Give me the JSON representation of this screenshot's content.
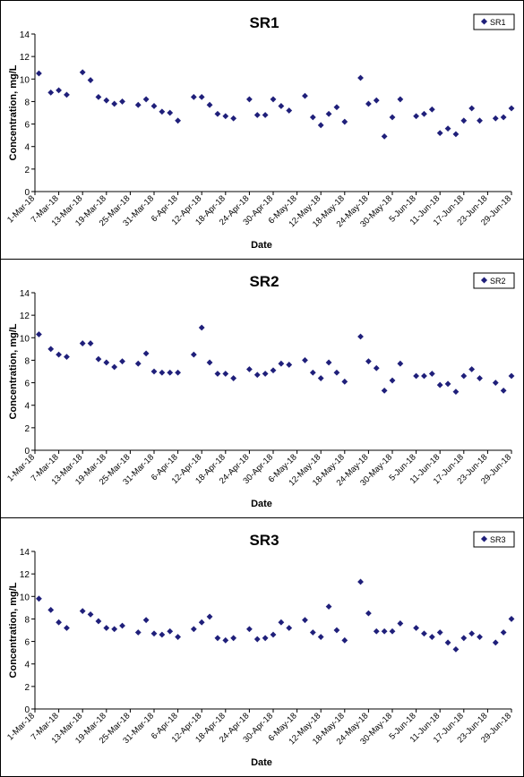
{
  "chart_data": [
    {
      "type": "scatter",
      "title": "SR1",
      "xlabel": "Date",
      "ylabel": "Concentration, mg/L",
      "ylim": [
        0,
        14
      ],
      "yticks": [
        0,
        2,
        4,
        6,
        8,
        10,
        12,
        14
      ],
      "xlim": [
        "2018-03-01",
        "2018-06-29"
      ],
      "xtick_labels": [
        "1-Mar-18",
        "7-Mar-18",
        "13-Mar-18",
        "19-Mar-18",
        "25-Mar-18",
        "31-Mar-18",
        "6-Apr-18",
        "12-Apr-18",
        "18-Apr-18",
        "24-Apr-18",
        "30-Apr-18",
        "6-May-18",
        "12-May-18",
        "18-May-18",
        "24-May-18",
        "30-May-18",
        "5-Jun-18",
        "11-Jun-18",
        "17-Jun-18",
        "23-Jun-18",
        "29-Jun-18"
      ],
      "legend": "top-right",
      "marker_color": "#1f1f7a",
      "series": [
        {
          "name": "SR1",
          "x": [
            "2018-03-02",
            "2018-03-05",
            "2018-03-07",
            "2018-03-09",
            "2018-03-13",
            "2018-03-15",
            "2018-03-17",
            "2018-03-19",
            "2018-03-21",
            "2018-03-23",
            "2018-03-27",
            "2018-03-29",
            "2018-03-31",
            "2018-04-02",
            "2018-04-04",
            "2018-04-06",
            "2018-04-10",
            "2018-04-12",
            "2018-04-14",
            "2018-04-16",
            "2018-04-18",
            "2018-04-20",
            "2018-04-24",
            "2018-04-26",
            "2018-04-28",
            "2018-04-30",
            "2018-05-02",
            "2018-05-04",
            "2018-05-08",
            "2018-05-10",
            "2018-05-12",
            "2018-05-14",
            "2018-05-16",
            "2018-05-18",
            "2018-05-22",
            "2018-05-24",
            "2018-05-26",
            "2018-05-28",
            "2018-05-30",
            "2018-06-01",
            "2018-06-05",
            "2018-06-07",
            "2018-06-09",
            "2018-06-11",
            "2018-06-13",
            "2018-06-15",
            "2018-06-17",
            "2018-06-19",
            "2018-06-21",
            "2018-06-25",
            "2018-06-27",
            "2018-06-29"
          ],
          "y": [
            10.5,
            8.8,
            9.0,
            8.6,
            10.6,
            9.9,
            8.4,
            8.1,
            7.8,
            8.0,
            7.7,
            8.2,
            7.6,
            7.1,
            7.0,
            6.3,
            8.4,
            8.4,
            7.7,
            6.9,
            6.7,
            6.5,
            8.2,
            6.8,
            6.8,
            8.2,
            7.6,
            7.2,
            8.5,
            6.6,
            5.9,
            6.9,
            7.5,
            6.2,
            10.1,
            7.8,
            8.1,
            4.9,
            6.6,
            8.2,
            6.7,
            6.9,
            7.3,
            5.2,
            5.6,
            5.1,
            6.3,
            7.4,
            6.3,
            6.5,
            6.6,
            7.4
          ]
        }
      ]
    },
    {
      "type": "scatter",
      "title": "SR2",
      "xlabel": "Date",
      "ylabel": "Concentration, mg/L",
      "ylim": [
        0,
        14
      ],
      "yticks": [
        0,
        2,
        4,
        6,
        8,
        10,
        12,
        14
      ],
      "xlim": [
        "2018-03-01",
        "2018-06-29"
      ],
      "xtick_labels": [
        "1-Mar-18",
        "7-Mar-18",
        "13-Mar-18",
        "19-Mar-18",
        "25-Mar-18",
        "31-Mar-18",
        "6-Apr-18",
        "12-Apr-18",
        "18-Apr-18",
        "24-Apr-18",
        "30-Apr-18",
        "6-May-18",
        "12-May-18",
        "18-May-18",
        "24-May-18",
        "30-May-18",
        "5-Jun-18",
        "11-Jun-18",
        "17-Jun-18",
        "23-Jun-18",
        "29-Jun-18"
      ],
      "legend": "top-right",
      "marker_color": "#1f1f7a",
      "series": [
        {
          "name": "SR2",
          "x": [
            "2018-03-02",
            "2018-03-05",
            "2018-03-07",
            "2018-03-09",
            "2018-03-13",
            "2018-03-15",
            "2018-03-17",
            "2018-03-19",
            "2018-03-21",
            "2018-03-23",
            "2018-03-27",
            "2018-03-29",
            "2018-03-31",
            "2018-04-02",
            "2018-04-04",
            "2018-04-06",
            "2018-04-10",
            "2018-04-12",
            "2018-04-14",
            "2018-04-16",
            "2018-04-18",
            "2018-04-20",
            "2018-04-24",
            "2018-04-26",
            "2018-04-28",
            "2018-04-30",
            "2018-05-02",
            "2018-05-04",
            "2018-05-08",
            "2018-05-10",
            "2018-05-12",
            "2018-05-14",
            "2018-05-16",
            "2018-05-18",
            "2018-05-22",
            "2018-05-24",
            "2018-05-26",
            "2018-05-28",
            "2018-05-30",
            "2018-06-01",
            "2018-06-05",
            "2018-06-07",
            "2018-06-09",
            "2018-06-11",
            "2018-06-13",
            "2018-06-15",
            "2018-06-17",
            "2018-06-19",
            "2018-06-21",
            "2018-06-25",
            "2018-06-27",
            "2018-06-29"
          ],
          "y": [
            10.3,
            9.0,
            8.5,
            8.3,
            9.5,
            9.5,
            8.1,
            7.8,
            7.4,
            7.9,
            7.7,
            8.6,
            7.0,
            6.9,
            6.9,
            6.9,
            8.5,
            10.9,
            7.8,
            6.8,
            6.8,
            6.4,
            7.2,
            6.7,
            6.8,
            7.1,
            7.7,
            7.6,
            8.0,
            6.9,
            6.4,
            7.8,
            6.9,
            6.1,
            10.1,
            7.9,
            7.3,
            5.3,
            6.2,
            7.7,
            6.6,
            6.6,
            6.8,
            5.8,
            5.9,
            5.2,
            6.6,
            7.2,
            6.4,
            6.0,
            5.3,
            6.6
          ]
        }
      ]
    },
    {
      "type": "scatter",
      "title": "SR3",
      "xlabel": "Date",
      "ylabel": "Concentration, mg/L",
      "ylim": [
        0,
        14
      ],
      "yticks": [
        0,
        2,
        4,
        6,
        8,
        10,
        12,
        14
      ],
      "xlim": [
        "2018-03-01",
        "2018-06-29"
      ],
      "xtick_labels": [
        "1-Mar-18",
        "7-Mar-18",
        "13-Mar-18",
        "19-Mar-18",
        "25-Mar-18",
        "31-Mar-18",
        "6-Apr-18",
        "12-Apr-18",
        "18-Apr-18",
        "24-Apr-18",
        "30-Apr-18",
        "6-May-18",
        "12-May-18",
        "18-May-18",
        "24-May-18",
        "30-May-18",
        "5-Jun-18",
        "11-Jun-18",
        "17-Jun-18",
        "23-Jun-18",
        "29-Jun-18"
      ],
      "legend": "top-right",
      "marker_color": "#1f1f7a",
      "series": [
        {
          "name": "SR3",
          "x": [
            "2018-03-02",
            "2018-03-05",
            "2018-03-07",
            "2018-03-09",
            "2018-03-13",
            "2018-03-15",
            "2018-03-17",
            "2018-03-19",
            "2018-03-21",
            "2018-03-23",
            "2018-03-27",
            "2018-03-29",
            "2018-03-31",
            "2018-04-02",
            "2018-04-04",
            "2018-04-06",
            "2018-04-10",
            "2018-04-12",
            "2018-04-14",
            "2018-04-16",
            "2018-04-18",
            "2018-04-20",
            "2018-04-24",
            "2018-04-26",
            "2018-04-28",
            "2018-04-30",
            "2018-05-02",
            "2018-05-04",
            "2018-05-08",
            "2018-05-10",
            "2018-05-12",
            "2018-05-14",
            "2018-05-16",
            "2018-05-18",
            "2018-05-22",
            "2018-05-24",
            "2018-05-26",
            "2018-05-28",
            "2018-05-30",
            "2018-06-01",
            "2018-06-05",
            "2018-06-07",
            "2018-06-09",
            "2018-06-11",
            "2018-06-13",
            "2018-06-15",
            "2018-06-17",
            "2018-06-19",
            "2018-06-21",
            "2018-06-25",
            "2018-06-27",
            "2018-06-29"
          ],
          "y": [
            9.8,
            8.8,
            7.7,
            7.2,
            8.7,
            8.4,
            7.8,
            7.2,
            7.1,
            7.4,
            6.8,
            7.9,
            6.7,
            6.6,
            6.9,
            6.4,
            7.1,
            7.7,
            8.2,
            6.3,
            6.1,
            6.3,
            7.1,
            6.2,
            6.3,
            6.6,
            7.7,
            7.2,
            7.9,
            6.8,
            6.4,
            9.1,
            7.0,
            6.1,
            11.3,
            8.5,
            6.9,
            6.9,
            6.9,
            7.6,
            7.2,
            6.7,
            6.4,
            6.8,
            5.9,
            5.3,
            6.3,
            6.7,
            6.4,
            5.9,
            6.8,
            8.0
          ]
        }
      ]
    }
  ]
}
